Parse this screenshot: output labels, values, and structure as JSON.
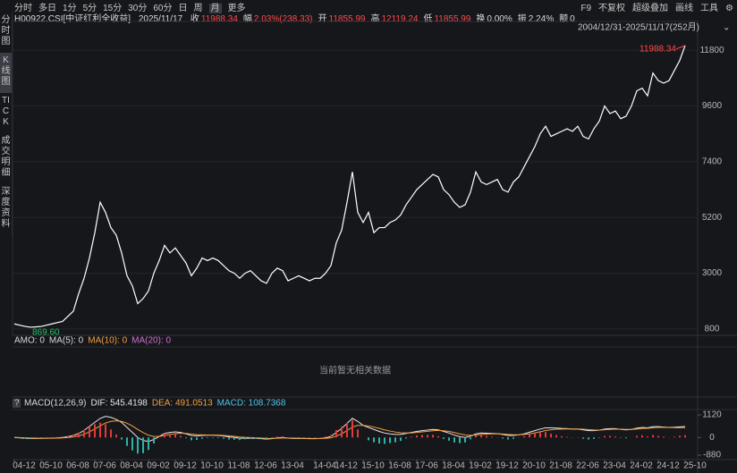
{
  "toolbar": {
    "periods": [
      "分时",
      "多日",
      "1分",
      "5分",
      "15分",
      "30分",
      "60分",
      "日",
      "周",
      "月",
      "更多"
    ],
    "tools": [
      "F9",
      "不复权",
      "超级叠加",
      "画线",
      "工具",
      "⚙"
    ]
  },
  "side_tabs": [
    "分时图",
    "K线图",
    "TICK",
    "成交明细",
    "深度资料"
  ],
  "header": {
    "code": "H00922.CSI[中证红利全收益]",
    "date": "2025/11/17",
    "items": [
      {
        "label": "收",
        "value": "11988.34"
      },
      {
        "label": "幅",
        "value": "2.03%(238.33)"
      },
      {
        "label": "开",
        "value": "11855.99"
      },
      {
        "label": "高",
        "value": "12119.24"
      },
      {
        "label": "低",
        "value": "11855.99"
      },
      {
        "label": "换",
        "value": "0.00%"
      },
      {
        "label": "振",
        "value": "2.24%"
      },
      {
        "label": "额",
        "value": "0"
      }
    ]
  },
  "range_label": "2004/12/31-2025/11/17(252月)",
  "amo_panel": {
    "legend": [
      "AMO: 0",
      "MA(5): 0",
      "MA(10): 0",
      "MA(20): 0"
    ],
    "empty_text": "当前暂无相关数据"
  },
  "chart_data": [
    {
      "type": "line",
      "color": "#ffffff",
      "grid": true,
      "low_label": "869.60",
      "high_label": "11988.34",
      "categories": [
        "04-12",
        null,
        null,
        null,
        null,
        "05-10",
        null,
        null,
        null,
        null,
        "06-08",
        null,
        null,
        null,
        null,
        "07-06",
        null,
        null,
        null,
        null,
        "08-04",
        null,
        null,
        null,
        null,
        "09-02",
        null,
        null,
        null,
        null,
        "09-12",
        null,
        null,
        null,
        null,
        "10-10",
        null,
        null,
        null,
        null,
        "11-08",
        null,
        null,
        null,
        null,
        "12-06",
        null,
        null,
        null,
        null,
        "13-04",
        null,
        null,
        null,
        null,
        null,
        "14-04",
        null,
        null,
        null,
        "14-12",
        null,
        null,
        null,
        null,
        "15-10",
        null,
        null,
        null,
        null,
        "16-08",
        null,
        null,
        null,
        null,
        "17-06",
        null,
        null,
        null,
        null,
        "18-04",
        null,
        null,
        null,
        null,
        "19-02",
        null,
        null,
        null,
        null,
        "19-12",
        null,
        null,
        null,
        null,
        "20-10",
        null,
        null,
        null,
        null,
        "21-08",
        null,
        null,
        null,
        null,
        "22-06",
        null,
        null,
        null,
        null,
        "23-04",
        null,
        null,
        null,
        null,
        "24-02",
        null,
        null,
        null,
        null,
        "24-12",
        null,
        null,
        null,
        null,
        "25-10"
      ],
      "values": [
        1000,
        950,
        900,
        869.6,
        880,
        900,
        950,
        1000,
        1050,
        1100,
        1300,
        1500,
        2200,
        2800,
        3600,
        4600,
        5800,
        5400,
        4800,
        4500,
        3800,
        2900,
        2500,
        1800,
        2000,
        2300,
        3000,
        3500,
        4100,
        3800,
        4000,
        3700,
        3400,
        2900,
        3200,
        3600,
        3500,
        3600,
        3500,
        3300,
        3100,
        3000,
        2800,
        3000,
        3100,
        2900,
        2700,
        2600,
        3000,
        3200,
        3100,
        2700,
        2800,
        2900,
        2800,
        2700,
        2800,
        2800,
        3000,
        3300,
        4200,
        4700,
        5800,
        7000,
        5400,
        5000,
        5400,
        4600,
        4800,
        4800,
        5000,
        5100,
        5300,
        5700,
        6000,
        6300,
        6500,
        6700,
        6900,
        6800,
        6300,
        6100,
        5800,
        5600,
        5700,
        6200,
        7000,
        6600,
        6500,
        6600,
        6700,
        6300,
        6200,
        6600,
        6800,
        7200,
        7600,
        8000,
        8500,
        8800,
        8400,
        8500,
        8600,
        8700,
        8600,
        8800,
        8400,
        8300,
        8700,
        9000,
        9600,
        9300,
        9400,
        9100,
        9200,
        9600,
        10200,
        10300,
        10000,
        10900,
        10600,
        10500,
        10600,
        11000,
        11400,
        11988.34
      ],
      "ylim": [
        550,
        12300
      ],
      "yticks": [
        800,
        3000,
        5200,
        7400,
        9600,
        11800
      ]
    },
    {
      "type": "macd",
      "title": "MACD(12,26,9)",
      "help": "?",
      "legend": [
        "DIF: 545.4198",
        "DEA: 491.0513",
        "MACD: 108.7368"
      ],
      "legend_colors": [
        "#e6e6e6",
        "#f0a040",
        "#4fc3e8"
      ],
      "ylim": [
        -1100,
        1390
      ],
      "yticks": [
        1120,
        0,
        -880
      ],
      "series": [
        {
          "type": "line",
          "color": "#e6e6e6",
          "values": [
            0,
            -20,
            -40,
            -50,
            -50,
            -45,
            -40,
            -30,
            -20,
            0,
            40,
            100,
            200,
            350,
            550,
            750,
            950,
            1050,
            1000,
            900,
            750,
            500,
            250,
            0,
            -150,
            -200,
            -100,
            50,
            200,
            250,
            280,
            250,
            180,
            100,
            80,
            100,
            110,
            110,
            100,
            70,
            30,
            0,
            -40,
            -40,
            -30,
            -40,
            -60,
            -80,
            -60,
            -20,
            0,
            -30,
            -50,
            -50,
            -50,
            -60,
            -60,
            -50,
            -20,
            50,
            250,
            450,
            700,
            950,
            800,
            600,
            500,
            400,
            300,
            220,
            180,
            150,
            150,
            200,
            250,
            300,
            340,
            370,
            400,
            380,
            300,
            220,
            120,
            40,
            0,
            60,
            180,
            220,
            210,
            200,
            190,
            150,
            100,
            100,
            130,
            180,
            260,
            340,
            420,
            480,
            480,
            470,
            450,
            440,
            420,
            420,
            380,
            340,
            340,
            360,
            420,
            440,
            440,
            400,
            380,
            400,
            460,
            500,
            480,
            540,
            540,
            520,
            500,
            510,
            530,
            545.4198
          ]
        },
        {
          "type": "line",
          "color": "#f0a040",
          "values": [
            0,
            -5,
            -15,
            -25,
            -33,
            -37,
            -38,
            -36,
            -31,
            -22,
            -3,
            28,
            80,
            160,
            280,
            420,
            580,
            720,
            800,
            830,
            800,
            710,
            570,
            400,
            240,
            110,
            50,
            50,
            100,
            150,
            190,
            210,
            200,
            170,
            140,
            130,
            125,
            120,
            115,
            100,
            80,
            55,
            25,
            5,
            -5,
            -15,
            -30,
            -45,
            -50,
            -40,
            -28,
            -28,
            -35,
            -40,
            -43,
            -48,
            -52,
            -51,
            -42,
            -15,
            65,
            180,
            340,
            520,
            600,
            600,
            570,
            520,
            450,
            380,
            320,
            270,
            235,
            225,
            230,
            250,
            280,
            305,
            335,
            350,
            335,
            300,
            245,
            180,
            125,
            105,
            125,
            150,
            170,
            180,
            185,
            175,
            150,
            135,
            135,
            150,
            180,
            230,
            285,
            345,
            385,
            410,
            420,
            425,
            425,
            425,
            410,
            390,
            375,
            370,
            385,
            400,
            415,
            410,
            400,
            400,
            420,
            445,
            455,
            480,
            500,
            500,
            497,
            492,
            485,
            491.0513
          ]
        },
        {
          "type": "bar",
          "color": "#e03a3a",
          "negative_color": "#2bb5a5",
          "values": [
            0,
            -30,
            -50,
            -50,
            -34,
            -16,
            -4,
            12,
            22,
            44,
            86,
            144,
            240,
            380,
            540,
            660,
            740,
            660,
            400,
            140,
            -100,
            -420,
            -640,
            -800,
            -780,
            -620,
            -300,
            0,
            200,
            200,
            180,
            80,
            -40,
            -140,
            -120,
            -60,
            -30,
            -20,
            -30,
            -60,
            -100,
            -110,
            -130,
            -90,
            -50,
            -50,
            -60,
            -70,
            -20,
            40,
            56,
            -4,
            -30,
            -20,
            -14,
            -24,
            -16,
            2,
            44,
            130,
            370,
            540,
            720,
            860,
            400,
            0,
            -140,
            -240,
            -300,
            -320,
            -280,
            -240,
            -170,
            -50,
            40,
            100,
            120,
            130,
            130,
            60,
            -70,
            -160,
            -250,
            -280,
            -250,
            -90,
            110,
            140,
            80,
            40,
            10,
            -50,
            -100,
            -70,
            -10,
            60,
            160,
            220,
            270,
            270,
            190,
            120,
            60,
            30,
            -10,
            -10,
            -60,
            -100,
            -70,
            -20,
            70,
            80,
            50,
            -20,
            -40,
            0,
            80,
            110,
            50,
            120,
            80,
            40,
            6,
            36,
            90,
            108.7368
          ]
        }
      ]
    }
  ]
}
